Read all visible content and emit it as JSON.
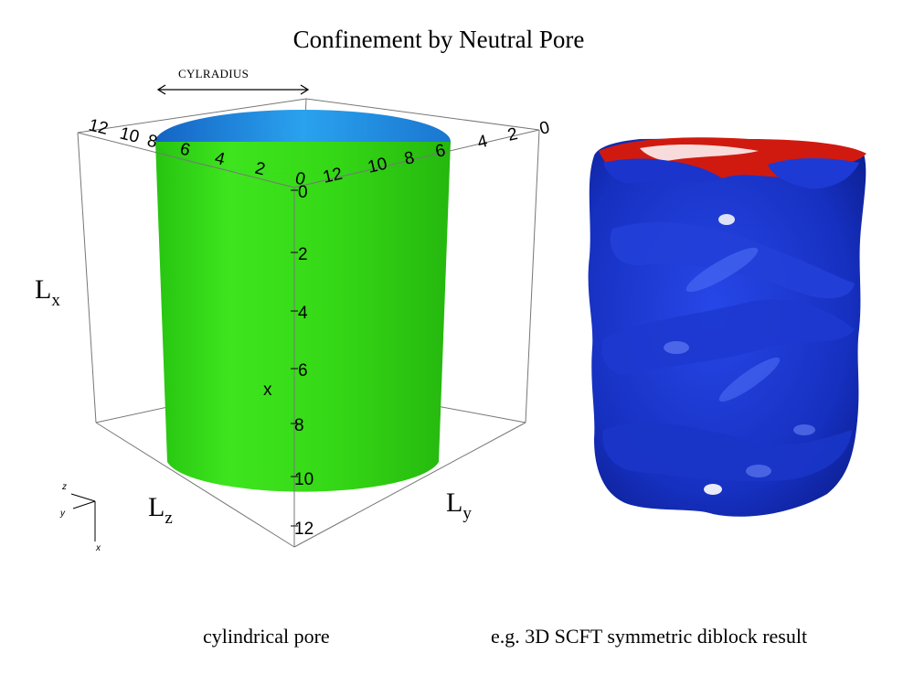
{
  "title": "Confinement by Neutral Pore",
  "cylradius_label": "CYLRADIUS",
  "dimension_labels": {
    "lx": {
      "main": "L",
      "sub": "x"
    },
    "lz": {
      "main": "L",
      "sub": "z"
    },
    "ly": {
      "main": "L",
      "sub": "y"
    }
  },
  "axis_x_label": "x",
  "ticks": {
    "x_axis": [
      "0",
      "2",
      "4",
      "6",
      "8",
      "10",
      "12"
    ],
    "top_left_axis": [
      "12",
      "10",
      "8",
      "6",
      "4",
      "2",
      "0"
    ],
    "top_right_axis": [
      "12",
      "10",
      "8",
      "6",
      "4",
      "2",
      "0"
    ]
  },
  "orientation_axes": {
    "z": "z",
    "y": "y",
    "x": "x"
  },
  "captions": {
    "left": "cylindrical pore",
    "right": "e.g. 3D SCFT symmetric diblock result"
  },
  "colors": {
    "cylinder": "#2fe015",
    "cylinder_inner": "#1f8fe0",
    "diblock_blue": "#1830c8",
    "diblock_red": "#d01a10"
  }
}
